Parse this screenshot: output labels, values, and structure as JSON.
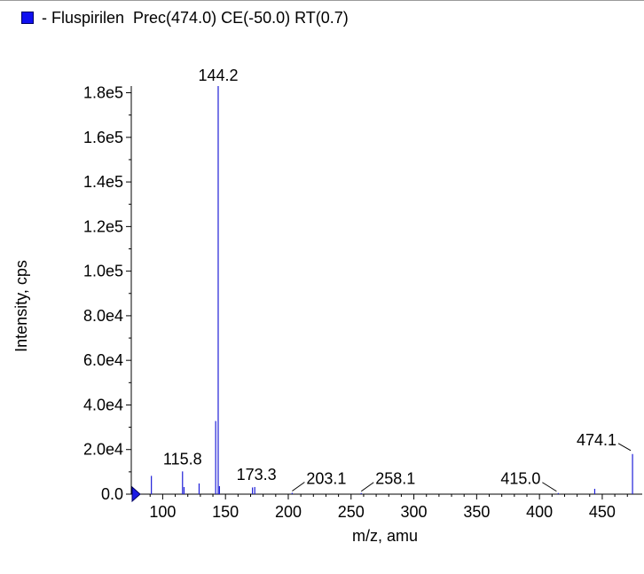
{
  "legend": {
    "swatch_color": "#1010f0",
    "text": "- Fluspirilen  Prec(474.0) CE(-50.0) RT(0.7)"
  },
  "chart_data": {
    "type": "bar",
    "xlabel": "m/z, amu",
    "ylabel": "Intensity, cps",
    "xlim": [
      75,
      479
    ],
    "ylim": [
      0,
      183000
    ],
    "x_ticks": [
      100,
      150,
      200,
      250,
      300,
      350,
      400,
      450
    ],
    "x_tick_labels": [
      "100",
      "150",
      "200",
      "250",
      "300",
      "350",
      "400",
      "450"
    ],
    "y_ticks": [
      0,
      20000,
      40000,
      60000,
      80000,
      100000,
      120000,
      140000,
      160000,
      180000
    ],
    "y_tick_labels": [
      "0.0",
      "2.0e4",
      "4.0e4",
      "6.0e4",
      "8.0e4",
      "1.0e5",
      "1.2e5",
      "1.4e5",
      "1.6e5",
      "1.8e5"
    ],
    "line_color": "#1f1fd8",
    "peaks": [
      {
        "mz": 91.0,
        "intensity": 8200
      },
      {
        "mz": 115.8,
        "intensity": 10200
      },
      {
        "mz": 117.0,
        "intensity": 3200
      },
      {
        "mz": 129.0,
        "intensity": 4800
      },
      {
        "mz": 142.2,
        "intensity": 32800
      },
      {
        "mz": 144.2,
        "intensity": 183000
      },
      {
        "mz": 145.2,
        "intensity": 3600
      },
      {
        "mz": 171.5,
        "intensity": 3000
      },
      {
        "mz": 173.3,
        "intensity": 3200
      },
      {
        "mz": 203.1,
        "intensity": 600
      },
      {
        "mz": 258.1,
        "intensity": 500
      },
      {
        "mz": 415.0,
        "intensity": 500
      },
      {
        "mz": 444.0,
        "intensity": 2400
      },
      {
        "mz": 474.1,
        "intensity": 18000
      }
    ],
    "annotations": [
      {
        "text": "144.2",
        "mz": 144.2
      },
      {
        "text": "115.8",
        "mz": 115.8
      },
      {
        "text": "173.3",
        "mz": 173.3
      },
      {
        "text": "203.1",
        "mz": 203.1
      },
      {
        "text": "258.1",
        "mz": 258.1
      },
      {
        "text": "415.0",
        "mz": 415.0
      },
      {
        "text": "474.1",
        "mz": 474.1
      }
    ]
  }
}
